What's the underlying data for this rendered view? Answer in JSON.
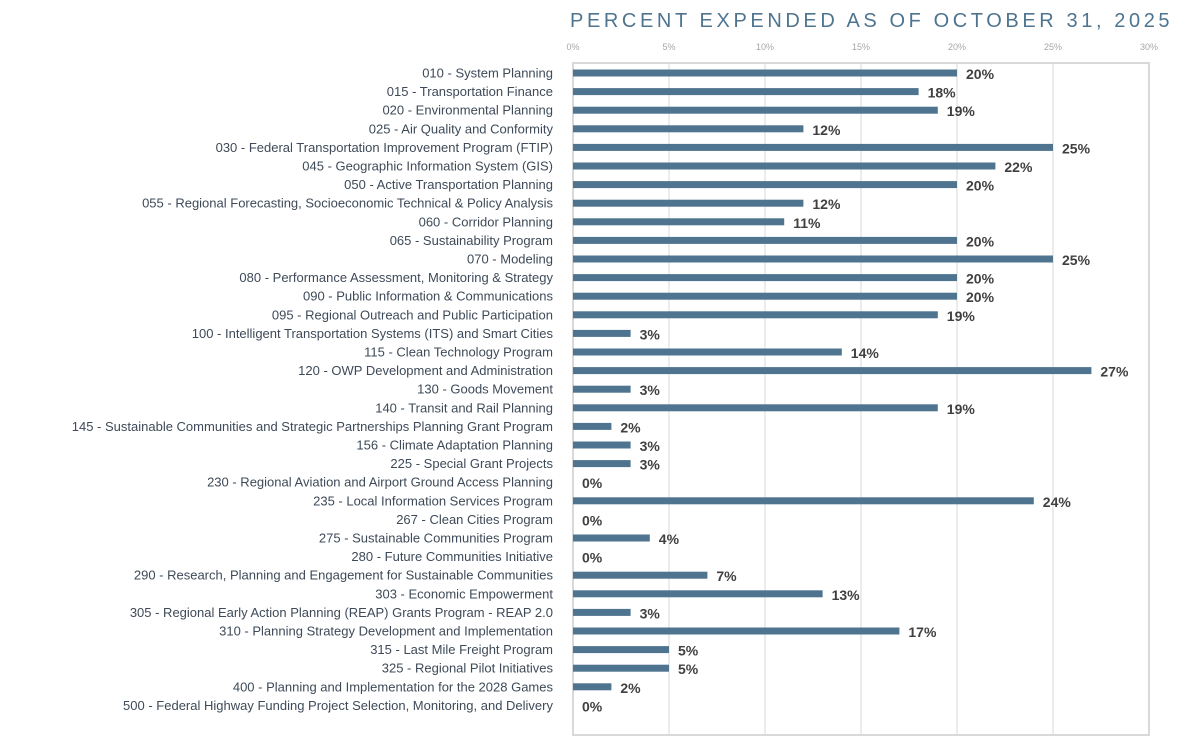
{
  "chart_data": {
    "type": "bar",
    "orientation": "horizontal",
    "title": "PERCENT EXPENDED AS OF OCTOBER 31, 2025",
    "xlabel": "",
    "ylabel": "",
    "xlim": [
      0,
      30
    ],
    "x_ticks": [
      "0%",
      "5%",
      "10%",
      "15%",
      "20%",
      "25%",
      "30%"
    ],
    "grid": true,
    "bar_color": "#4e7490",
    "categories": [
      "010 - System Planning",
      "015 - Transportation Finance",
      "020 - Environmental Planning",
      "025 - Air Quality and Conformity",
      "030 - Federal Transportation Improvement Program (FTIP)",
      "045 - Geographic Information System (GIS)",
      "050 - Active Transportation Planning",
      "055 - Regional Forecasting, Socioeconomic Technical & Policy Analysis",
      "060 - Corridor Planning",
      "065 - Sustainability Program",
      "070 - Modeling",
      "080 - Performance Assessment, Monitoring & Strategy",
      "090 - Public Information & Communications",
      "095 - Regional Outreach and Public Participation",
      "100 - Intelligent Transportation Systems (ITS) and Smart Cities",
      "115 - Clean Technology Program",
      "120 - OWP Development and Administration",
      "130 - Goods Movement",
      "140 - Transit and Rail Planning",
      "145 - Sustainable Communities and Strategic Partnerships Planning Grant Program",
      "156 - Climate Adaptation Planning",
      "225 - Special Grant Projects",
      "230 - Regional Aviation and Airport Ground Access Planning",
      "235 - Local Information Services Program",
      "267 - Clean Cities Program",
      "275 - Sustainable Communities Program",
      "280 - Future Communities Initiative",
      "290 - Research, Planning and Engagement for Sustainable Communities",
      "303 - Economic Empowerment",
      "305 - Regional Early Action Planning (REAP) Grants Program - REAP 2.0",
      "310 - Planning Strategy Development and Implementation",
      "315 - Last Mile Freight Program",
      "325 - Regional Pilot Initiatives",
      "400 - Planning and Implementation for the 2028 Games",
      "500 - Federal Highway Funding Project Selection, Monitoring, and Delivery"
    ],
    "values": [
      20,
      18,
      19,
      12,
      25,
      22,
      20,
      12,
      11,
      20,
      25,
      20,
      20,
      19,
      3,
      14,
      27,
      3,
      19,
      2,
      3,
      3,
      0,
      24,
      0,
      4,
      0,
      7,
      13,
      3,
      17,
      5,
      5,
      2,
      0
    ],
    "data_labels": [
      "20%",
      "18%",
      "19%",
      "12%",
      "25%",
      "22%",
      "20%",
      "12%",
      "11%",
      "20%",
      "25%",
      "20%",
      "20%",
      "19%",
      "3%",
      "14%",
      "27%",
      "3%",
      "19%",
      "2%",
      "3%",
      "3%",
      "0%",
      "24%",
      "0%",
      "4%",
      "0%",
      "7%",
      "13%",
      "3%",
      "17%",
      "5%",
      "5%",
      "2%",
      "0%"
    ]
  }
}
